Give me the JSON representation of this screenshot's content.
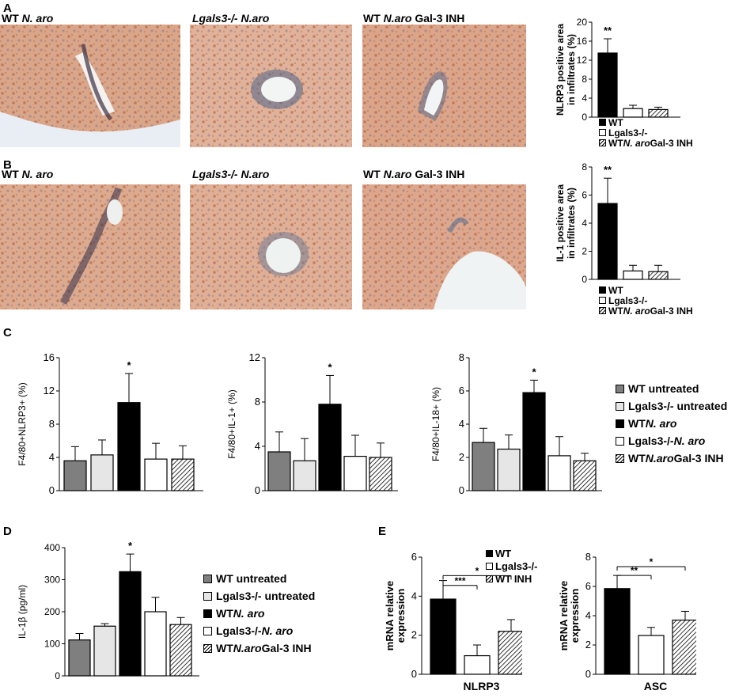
{
  "colors": {
    "wt_untreated": "#7f7f7f",
    "lgals3_untreated": "#e6e6e6",
    "wt_naro": "#000000",
    "lgals3_naro": "#ffffff",
    "gal3_inh": "hatch"
  },
  "panelA": {
    "letter": "A",
    "images": [
      {
        "label_a": "WT ",
        "label_b": "N. aro",
        "label_c": ""
      },
      {
        "label_a": "",
        "label_b": "Lgals3-/- N.aro",
        "label_c": ""
      },
      {
        "label_a": "WT ",
        "label_b": "N.aro",
        "label_c": " Gal-3 INH"
      }
    ],
    "legend": [
      {
        "text_a": "WT",
        "text_b": "",
        "text_c": "",
        "fill": "black"
      },
      {
        "text_a": "Lgals3-/-",
        "text_b": "",
        "text_c": "",
        "fill": "white"
      },
      {
        "text_a": "WT ",
        "text_b": "N. aro",
        "text_c": " Gal-3 INH",
        "fill": "hatch"
      }
    ]
  },
  "panelB": {
    "letter": "B",
    "images": [
      {
        "label_a": "WT ",
        "label_b": "N. aro",
        "label_c": ""
      },
      {
        "label_a": "",
        "label_b": "Lgals3-/- N.aro",
        "label_c": ""
      },
      {
        "label_a": "WT ",
        "label_b": "N.aro",
        "label_c": " Gal-3 INH"
      }
    ],
    "legend": [
      {
        "text_a": "WT",
        "text_b": "",
        "text_c": "",
        "fill": "black"
      },
      {
        "text_a": "Lgals3-/-",
        "text_b": "",
        "text_c": "",
        "fill": "white"
      },
      {
        "text_a": "WT ",
        "text_b": "N. aro",
        "text_c": " Gal-3 INH",
        "fill": "hatch"
      }
    ]
  },
  "panelC": {
    "letter": "C",
    "legend": [
      {
        "text_a": "WT untreated",
        "text_b": "",
        "text_c": "",
        "fill": "gray"
      },
      {
        "text_a": "Lgals3-/- untreated",
        "text_b": "",
        "text_c": "",
        "fill": "lightgray"
      },
      {
        "text_a": "WT ",
        "text_b": "N. aro",
        "text_c": "",
        "fill": "black"
      },
      {
        "text_a": "Lgals3-/- ",
        "text_b": "N. aro",
        "text_c": "",
        "fill": "white"
      },
      {
        "text_a": "WT ",
        "text_b": "N.aro",
        "text_c": " Gal-3 INH",
        "fill": "hatch"
      }
    ]
  },
  "panelD": {
    "letter": "D",
    "legend": [
      {
        "text_a": "WT untreated",
        "text_b": "",
        "text_c": "",
        "fill": "gray"
      },
      {
        "text_a": "Lgals3-/- untreated",
        "text_b": "",
        "text_c": "",
        "fill": "lightgray"
      },
      {
        "text_a": "WT ",
        "text_b": "N. aro",
        "text_c": "",
        "fill": "black"
      },
      {
        "text_a": "Lgals3-/- ",
        "text_b": "N. aro",
        "text_c": "",
        "fill": "white"
      },
      {
        "text_a": "WT ",
        "text_b": "N.aro",
        "text_c": " Gal-3 INH",
        "fill": "hatch"
      }
    ]
  },
  "panelE": {
    "letter": "E",
    "legend": [
      {
        "text_a": "WT",
        "fill": "black"
      },
      {
        "text_a": "Lgals3-/-",
        "fill": "white"
      },
      {
        "text_a": "WT INH",
        "fill": "hatch"
      }
    ]
  },
  "chart_data": [
    {
      "id": "A_nlrp3",
      "type": "bar",
      "title": "",
      "ylabel": "NLRP3 positive area in infiltrates (%)",
      "xlabel": "",
      "ylim": [
        0,
        20
      ],
      "yticks": [
        0,
        4,
        8,
        12,
        16,
        20
      ],
      "fills": [
        "black",
        "white",
        "hatch"
      ],
      "values": [
        13.5,
        1.8,
        1.6
      ],
      "errors": [
        3.0,
        0.7,
        0.5
      ],
      "sig": [
        "**",
        "",
        ""
      ]
    },
    {
      "id": "B_il1",
      "type": "bar",
      "title": "",
      "ylabel": "IL-1 positive area in infiltrates (%)",
      "xlabel": "",
      "ylim": [
        0,
        8
      ],
      "yticks": [
        0,
        2,
        4,
        6,
        8
      ],
      "fills": [
        "black",
        "white",
        "hatch"
      ],
      "values": [
        5.4,
        0.6,
        0.55
      ],
      "errors": [
        1.8,
        0.4,
        0.45
      ],
      "sig": [
        "**",
        "",
        ""
      ]
    },
    {
      "id": "C_nlrp3",
      "type": "bar",
      "title": "",
      "ylabel": "F4/80+NLRP3+ (%)",
      "xlabel": "",
      "ylim": [
        0,
        16
      ],
      "yticks": [
        0,
        4,
        8,
        12,
        16
      ],
      "fills": [
        "gray",
        "lightgray",
        "black",
        "white",
        "hatch"
      ],
      "values": [
        3.6,
        4.3,
        10.6,
        3.8,
        3.8
      ],
      "errors": [
        1.7,
        1.8,
        3.5,
        1.9,
        1.6
      ],
      "sig": [
        "",
        "",
        "*",
        "",
        ""
      ]
    },
    {
      "id": "C_il1",
      "type": "bar",
      "title": "",
      "ylabel": "F4/80+IL-1+ (%)",
      "xlabel": "",
      "ylim": [
        0,
        12
      ],
      "yticks": [
        0,
        4,
        8,
        12
      ],
      "fills": [
        "gray",
        "lightgray",
        "black",
        "white",
        "hatch"
      ],
      "values": [
        3.5,
        2.7,
        7.8,
        3.1,
        3.0
      ],
      "errors": [
        1.8,
        2.0,
        2.6,
        1.9,
        1.3
      ],
      "sig": [
        "",
        "",
        "*",
        "",
        ""
      ]
    },
    {
      "id": "C_il18",
      "type": "bar",
      "title": "",
      "ylabel": "F4/80+IL-18+ (%)",
      "xlabel": "",
      "ylim": [
        0,
        8
      ],
      "yticks": [
        0,
        2,
        4,
        6,
        8
      ],
      "fills": [
        "gray",
        "lightgray",
        "black",
        "white",
        "hatch"
      ],
      "values": [
        2.9,
        2.5,
        5.9,
        2.1,
        1.8
      ],
      "errors": [
        0.85,
        0.85,
        0.75,
        1.15,
        0.45
      ],
      "sig": [
        "",
        "",
        "*",
        "",
        ""
      ]
    },
    {
      "id": "D_il1b",
      "type": "bar",
      "title": "",
      "ylabel": "IL-1β (pg/ml)",
      "xlabel": "",
      "ylim": [
        0,
        400
      ],
      "yticks": [
        0,
        100,
        200,
        300,
        400
      ],
      "fills": [
        "gray",
        "lightgray",
        "black",
        "white",
        "hatch"
      ],
      "values": [
        112,
        155,
        325,
        200,
        160
      ],
      "errors": [
        20,
        8,
        55,
        45,
        22
      ],
      "sig": [
        "",
        "",
        "*",
        "",
        ""
      ]
    },
    {
      "id": "E_nlrp3",
      "type": "bar",
      "title": "",
      "ylabel": "mRNA relative expression",
      "xlabel": "NLRP3",
      "ylim": [
        0,
        6
      ],
      "yticks": [
        0,
        2,
        4,
        6
      ],
      "fills": [
        "black",
        "white",
        "hatch"
      ],
      "values": [
        3.85,
        0.95,
        2.2
      ],
      "errors": [
        0.95,
        0.55,
        0.6
      ],
      "sig": [
        "",
        "",
        ""
      ],
      "brackets": [
        {
          "from": 0,
          "to": 1,
          "label": "***",
          "level": 4.55
        },
        {
          "from": 0,
          "to": 2,
          "label": "*",
          "level": 5.05
        }
      ]
    },
    {
      "id": "E_asc",
      "type": "bar",
      "title": "",
      "ylabel": "mRNA relative expression",
      "xlabel": "ASC",
      "ylim": [
        0,
        8
      ],
      "yticks": [
        0,
        2,
        4,
        6,
        8
      ],
      "fills": [
        "black",
        "white",
        "hatch"
      ],
      "values": [
        5.85,
        2.65,
        3.7
      ],
      "errors": [
        0.9,
        0.55,
        0.6
      ],
      "sig": [
        "",
        "",
        ""
      ],
      "brackets": [
        {
          "from": 0,
          "to": 1,
          "label": "**",
          "level": 6.75
        },
        {
          "from": 0,
          "to": 2,
          "label": "*",
          "level": 7.35
        }
      ]
    }
  ]
}
